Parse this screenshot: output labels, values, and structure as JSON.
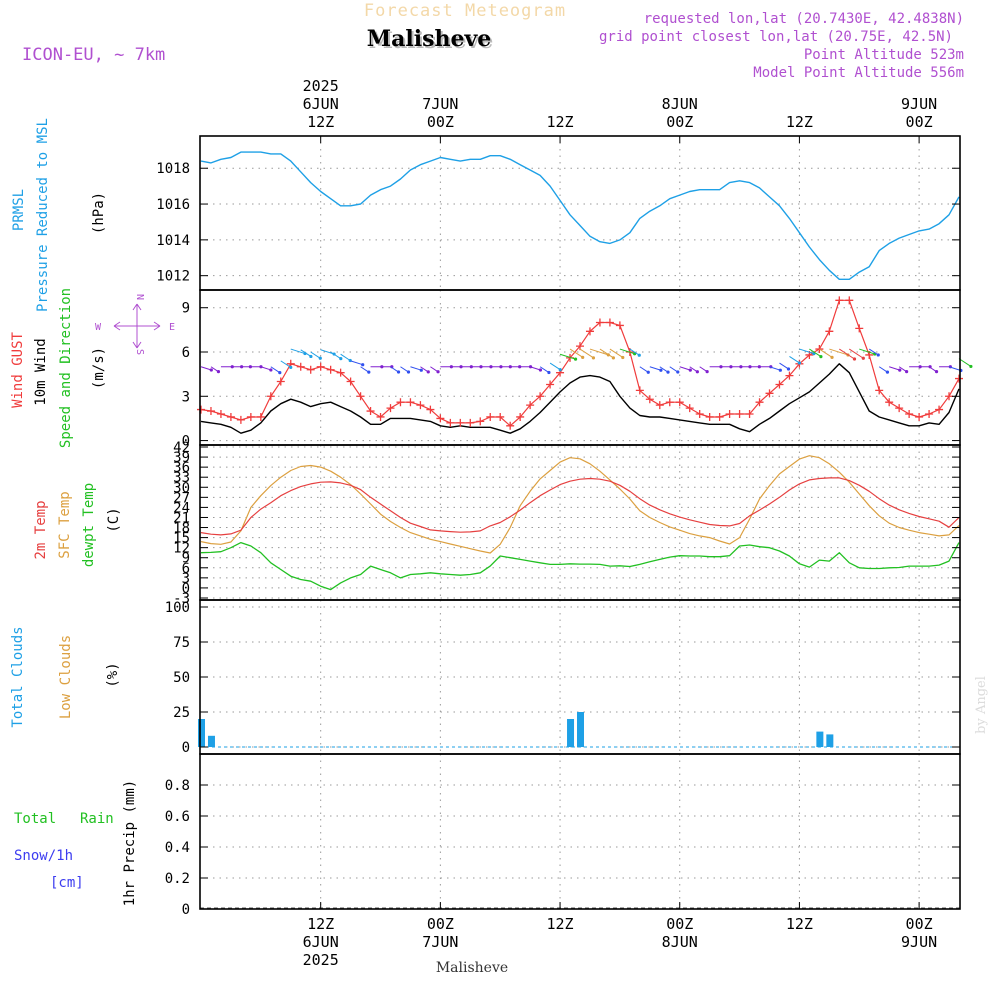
{
  "header": {
    "supertitle": "Forecast Meteogram",
    "title": "Malisheve",
    "model": "ICON-EU, ~ 7km",
    "requested": "requested lon,lat (20.7430E, 42.4838N)",
    "gridpoint": "grid point closest lon,lat (20.75E, 42.5N)",
    "point_alt": "Point Altitude 523m",
    "model_alt": "Model Point Altitude 556m"
  },
  "footer": {
    "station": "Malisheve",
    "credit": "by Angel"
  },
  "colors": {
    "pressure": "#1ea0e6",
    "gust": "#f03c3c",
    "wind": "#000000",
    "green": "#22c022",
    "orange": "#dca040",
    "red": "#e64040",
    "clouds": "#1ea0e6",
    "purple": "#b050d0",
    "rain_green": "#22c022",
    "snow_blue": "#3c3cf0"
  },
  "time_axis": {
    "top_labels": [
      {
        "x": 12,
        "lines": [
          "2025",
          "6JUN",
          "12Z"
        ]
      },
      {
        "x": 24,
        "lines": [
          "7JUN",
          "00Z"
        ]
      },
      {
        "x": 36,
        "lines": [
          "12Z"
        ]
      },
      {
        "x": 48,
        "lines": [
          "8JUN",
          "00Z"
        ]
      },
      {
        "x": 60,
        "lines": [
          "12Z"
        ]
      },
      {
        "x": 72,
        "lines": [
          "9JUN",
          "00Z"
        ]
      }
    ],
    "bottom_labels": [
      {
        "x": 12,
        "lines": [
          "12Z",
          "6JUN",
          "2025"
        ]
      },
      {
        "x": 24,
        "lines": [
          "00Z",
          "7JUN"
        ]
      },
      {
        "x": 36,
        "lines": [
          "12Z"
        ]
      },
      {
        "x": 48,
        "lines": [
          "00Z",
          "8JUN"
        ]
      },
      {
        "x": 60,
        "lines": [
          "12Z"
        ]
      },
      {
        "x": 72,
        "lines": [
          "00Z",
          "9JUN"
        ]
      }
    ]
  },
  "panel_labels": {
    "pressure": {
      "line1": "PRMSL",
      "line2": "Pressure Reduced to MSL",
      "unit": "(hPa)"
    },
    "wind": {
      "gust": "Wind GUST",
      "wind": "10m Wind",
      "dir": "Speed and Direction",
      "unit": "(m/s)",
      "compass": {
        "n": "N",
        "s": "S",
        "e": "E",
        "w": "W"
      }
    },
    "temp": {
      "t2m": "2m Temp",
      "sfc": "SFC Temp",
      "dew": "dewpt Temp",
      "unit": "(C)"
    },
    "clouds": {
      "total": "Total Clouds",
      "low": "Low Clouds",
      "unit": "(%)"
    },
    "precip": {
      "rain1": "Total",
      "rain2": "Rain",
      "snow": "Snow/1h",
      "snow_unit": "[cm]",
      "precip": "1hr Precip (mm)"
    }
  },
  "chart_data": [
    {
      "type": "line",
      "id": "pressure",
      "ylabel": "(hPa)",
      "ylim": [
        1011.2,
        1019.8
      ],
      "yticks": [
        1012,
        1014,
        1016,
        1018
      ],
      "x": [
        0,
        1,
        2,
        3,
        4,
        5,
        6,
        7,
        8,
        9,
        10,
        11,
        12,
        13,
        14,
        15,
        16,
        17,
        18,
        19,
        20,
        21,
        22,
        23,
        24,
        25,
        26,
        27,
        28,
        29,
        30,
        31,
        32,
        33,
        34,
        35,
        36,
        37,
        38,
        39,
        40,
        41,
        42,
        43,
        44,
        45,
        46,
        47,
        48,
        49,
        50,
        51,
        52,
        53,
        54,
        55,
        56,
        57,
        58,
        59,
        60,
        61,
        62,
        63,
        64,
        65,
        66,
        67,
        68,
        69,
        70,
        71,
        72,
        73,
        74,
        75,
        76
      ],
      "series": [
        {
          "values": [
            1018.4,
            1018.3,
            1018.5,
            1018.6,
            1018.9,
            1018.9,
            1018.9,
            1018.8,
            1018.8,
            1018.4,
            1017.8,
            1017.2,
            1016.7,
            1016.3,
            1015.9,
            1015.9,
            1016.0,
            1016.5,
            1016.8,
            1017.0,
            1017.4,
            1017.9,
            1018.2,
            1018.4,
            1018.6,
            1018.5,
            1018.4,
            1018.5,
            1018.5,
            1018.7,
            1018.7,
            1018.5,
            1018.2,
            1017.9,
            1017.6,
            1017.0,
            1016.2,
            1015.4,
            1014.8,
            1014.2,
            1013.9,
            1013.8,
            1014.0,
            1014.4,
            1015.2,
            1015.6,
            1015.9,
            1016.3,
            1016.5,
            1016.7,
            1016.8,
            1016.8,
            1016.8,
            1017.2,
            1017.3,
            1017.2,
            1016.9,
            1016.4,
            1015.9,
            1015.2,
            1014.4,
            1013.6,
            1012.9,
            1012.3,
            1011.8,
            1011.8,
            1012.2,
            1012.5,
            1013.4,
            1013.8,
            1014.1,
            1014.3,
            1014.5,
            1014.6,
            1014.9,
            1015.4,
            1016.4
          ]
        }
      ]
    },
    {
      "type": "line",
      "id": "wind",
      "ylabel": "(m/s)",
      "ylim": [
        -0.3,
        10.2
      ],
      "yticks": [
        0,
        3,
        6,
        9
      ],
      "x": [
        0,
        1,
        2,
        3,
        4,
        5,
        6,
        7,
        8,
        9,
        10,
        11,
        12,
        13,
        14,
        15,
        16,
        17,
        18,
        19,
        20,
        21,
        22,
        23,
        24,
        25,
        26,
        27,
        28,
        29,
        30,
        31,
        32,
        33,
        34,
        35,
        36,
        37,
        38,
        39,
        40,
        41,
        42,
        43,
        44,
        45,
        46,
        47,
        48,
        49,
        50,
        51,
        52,
        53,
        54,
        55,
        56,
        57,
        58,
        59,
        60,
        61,
        62,
        63,
        64,
        65,
        66,
        67,
        68,
        69,
        70,
        71,
        72,
        73,
        74,
        75,
        76
      ],
      "series": [
        {
          "name": "Wind GUST",
          "markers": "plus",
          "values": [
            2.1,
            2.0,
            1.8,
            1.6,
            1.4,
            1.6,
            1.6,
            3.0,
            4.0,
            5.2,
            5.0,
            4.8,
            5.0,
            4.8,
            4.6,
            4.0,
            3.0,
            2.0,
            1.6,
            2.2,
            2.6,
            2.6,
            2.4,
            2.1,
            1.5,
            1.2,
            1.2,
            1.2,
            1.3,
            1.6,
            1.6,
            1.0,
            1.6,
            2.4,
            3.0,
            3.8,
            4.6,
            5.6,
            6.4,
            7.4,
            8.0,
            8.0,
            7.8,
            6.0,
            3.4,
            2.8,
            2.4,
            2.6,
            2.6,
            2.2,
            1.8,
            1.6,
            1.6,
            1.8,
            1.8,
            1.8,
            2.6,
            3.2,
            3.8,
            4.4,
            5.2,
            5.8,
            6.2,
            7.4,
            9.5,
            9.5,
            7.6,
            5.8,
            3.4,
            2.6,
            2.2,
            1.8,
            1.6,
            1.8,
            2.1,
            3.0,
            4.2
          ]
        },
        {
          "name": "10m Wind",
          "values": [
            1.3,
            1.2,
            1.1,
            0.9,
            0.5,
            0.7,
            1.2,
            2.0,
            2.5,
            2.8,
            2.6,
            2.3,
            2.5,
            2.6,
            2.3,
            2.0,
            1.6,
            1.1,
            1.1,
            1.5,
            1.5,
            1.5,
            1.4,
            1.3,
            1.0,
            0.9,
            1.0,
            0.9,
            0.9,
            0.9,
            0.7,
            0.5,
            0.8,
            1.3,
            1.9,
            2.6,
            3.3,
            3.9,
            4.3,
            4.4,
            4.3,
            4.0,
            3.0,
            2.2,
            1.7,
            1.6,
            1.6,
            1.5,
            1.4,
            1.3,
            1.2,
            1.1,
            1.1,
            1.1,
            0.8,
            0.6,
            1.1,
            1.5,
            2.0,
            2.5,
            2.9,
            3.3,
            3.9,
            4.5,
            5.2,
            4.6,
            3.3,
            2.0,
            1.6,
            1.4,
            1.2,
            1.0,
            1.0,
            1.2,
            1.1,
            1.9,
            3.5
          ]
        }
      ]
    },
    {
      "type": "line",
      "id": "temperature",
      "ylabel": "(C)",
      "ylim": [
        -3.6,
        42.6
      ],
      "yticks": [
        -3,
        0,
        3,
        6,
        9,
        12,
        15,
        18,
        21,
        24,
        27,
        30,
        33,
        36,
        39,
        42
      ],
      "x": [
        0,
        1,
        2,
        3,
        4,
        5,
        6,
        7,
        8,
        9,
        10,
        11,
        12,
        13,
        14,
        15,
        16,
        17,
        18,
        19,
        20,
        21,
        22,
        23,
        24,
        25,
        26,
        27,
        28,
        29,
        30,
        31,
        32,
        33,
        34,
        35,
        36,
        37,
        38,
        39,
        40,
        41,
        42,
        43,
        44,
        45,
        46,
        47,
        48,
        49,
        50,
        51,
        52,
        53,
        54,
        55,
        56,
        57,
        58,
        59,
        60,
        61,
        62,
        63,
        64,
        65,
        66,
        67,
        68,
        69,
        70,
        71,
        72,
        73,
        74,
        75,
        76
      ],
      "series": [
        {
          "name": "2m Temp",
          "values": [
            16.5,
            16.0,
            15.8,
            16.1,
            17.2,
            21.0,
            23.5,
            25.4,
            27.5,
            29.0,
            30.2,
            31.0,
            31.5,
            31.6,
            31.3,
            30.6,
            29.3,
            27.0,
            25.0,
            23.0,
            21.0,
            19.3,
            18.3,
            17.3,
            17.0,
            16.8,
            16.6,
            16.7,
            17.0,
            18.5,
            19.5,
            21.2,
            23.2,
            25.4,
            27.5,
            29.2,
            30.8,
            31.8,
            32.4,
            32.6,
            32.4,
            31.8,
            30.6,
            28.8,
            26.6,
            24.7,
            23.3,
            22.1,
            21.1,
            20.3,
            19.6,
            18.9,
            18.6,
            18.5,
            19.2,
            21.5,
            23.2,
            25.0,
            27.0,
            29.2,
            31.0,
            32.2,
            32.6,
            32.8,
            32.8,
            32.0,
            30.6,
            28.8,
            26.6,
            24.7,
            23.3,
            22.2,
            21.3,
            20.6,
            19.9,
            18.1,
            21.0
          ]
        },
        {
          "name": "SFC Temp",
          "values": [
            13.8,
            13.2,
            13.0,
            13.7,
            17.0,
            24.0,
            27.5,
            30.5,
            33.0,
            35.0,
            36.2,
            36.5,
            36.0,
            34.8,
            33.0,
            30.8,
            28.0,
            25.0,
            22.0,
            19.8,
            18.0,
            16.5,
            15.5,
            14.5,
            13.8,
            13.1,
            12.4,
            11.7,
            11.0,
            10.4,
            13.0,
            18.0,
            24.5,
            28.8,
            32.5,
            35.0,
            37.5,
            38.8,
            38.5,
            37.0,
            34.8,
            32.2,
            29.5,
            26.5,
            23.0,
            21.0,
            19.5,
            18.2,
            17.2,
            16.2,
            15.5,
            15.0,
            14.0,
            13.1,
            15.0,
            20.5,
            26.5,
            30.5,
            34.0,
            36.2,
            38.4,
            39.4,
            38.8,
            37.0,
            34.5,
            31.5,
            28.0,
            24.5,
            21.5,
            19.3,
            18.0,
            17.2,
            16.5,
            16.0,
            15.5,
            15.8,
            18.6
          ]
        },
        {
          "name": "dewpt Temp",
          "values": [
            10.5,
            10.6,
            10.8,
            12.0,
            13.5,
            12.5,
            10.5,
            7.5,
            5.5,
            3.5,
            2.5,
            2.0,
            0.5,
            -0.5,
            1.5,
            3.0,
            4.0,
            6.5,
            5.5,
            4.5,
            3.0,
            4.0,
            4.2,
            4.5,
            4.2,
            4.0,
            3.8,
            4.0,
            4.5,
            6.5,
            9.5,
            9.0,
            8.5,
            8.0,
            7.5,
            7.0,
            7.0,
            7.2,
            7.1,
            7.1,
            7.0,
            6.5,
            6.6,
            6.4,
            7.0,
            7.8,
            8.5,
            9.2,
            9.6,
            9.5,
            9.5,
            9.3,
            9.3,
            9.6,
            12.5,
            12.8,
            12.3,
            12.0,
            11.0,
            9.5,
            7.2,
            6.2,
            8.3,
            8.0,
            10.5,
            7.5,
            6.0,
            5.8,
            5.8,
            6.0,
            6.1,
            6.5,
            6.5,
            6.5,
            6.8,
            8.0,
            13.5
          ]
        }
      ]
    },
    {
      "type": "bar",
      "id": "clouds",
      "ylabel": "(%)",
      "ylim": [
        -5,
        105
      ],
      "yticks": [
        0,
        25,
        50,
        75,
        100
      ],
      "series": [
        {
          "name": "Total Clouds",
          "bars": [
            {
              "x": 0,
              "value": 20
            },
            {
              "x": 1,
              "value": 8
            },
            {
              "x": 37,
              "value": 20
            },
            {
              "x": 38,
              "value": 25
            },
            {
              "x": 62,
              "value": 11
            },
            {
              "x": 63,
              "value": 9
            }
          ]
        },
        {
          "name": "Low Clouds",
          "bars": []
        }
      ]
    },
    {
      "type": "bar",
      "id": "precip",
      "ylabel": "1hr Precip (mm)",
      "ylim": [
        0,
        1.0
      ],
      "yticks": [
        0,
        0.2,
        0.4,
        0.6,
        0.8
      ],
      "series": [
        {
          "name": "Total Rain",
          "bars": []
        },
        {
          "name": "Snow/1h",
          "bars": []
        }
      ]
    }
  ]
}
